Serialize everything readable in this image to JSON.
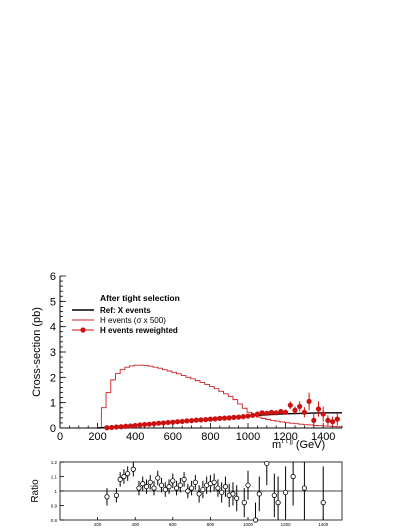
{
  "chart_data": [
    {
      "type": "line",
      "xlabel": "m",
      "xlabel_sup": "τ τ jj",
      "xlabel_unit": "(GeV)",
      "ylabel": "Cross-section (pb)",
      "xlim": [
        0,
        1500
      ],
      "ylim": [
        0,
        6
      ],
      "x_ticks": [
        0,
        200,
        400,
        600,
        800,
        1000,
        1200,
        1400
      ],
      "y_ticks": [
        0,
        1,
        2,
        3,
        4,
        5,
        6
      ],
      "legend_title": "After tight selection",
      "legend_position": "upper-left",
      "series": [
        {
          "name": "Ref: X events",
          "style": "line",
          "color": "#000000",
          "x": [
            200,
            300,
            400,
            500,
            600,
            700,
            800,
            900,
            1000,
            1100,
            1200,
            1300,
            1400,
            1500
          ],
          "y": [
            0.0,
            0.05,
            0.12,
            0.18,
            0.24,
            0.3,
            0.36,
            0.42,
            0.48,
            0.52,
            0.56,
            0.58,
            0.6,
            0.6
          ]
        },
        {
          "name": "H events (σ x 500)",
          "style": "step",
          "color": "#cc2222",
          "bin_edges": [
            220,
            245,
            270,
            295,
            320,
            345,
            370,
            395,
            420,
            445,
            470,
            495,
            520,
            545,
            570,
            595,
            620,
            645,
            670,
            695,
            720,
            745,
            770,
            795,
            820,
            845,
            870,
            895,
            920,
            945,
            970,
            995,
            1020,
            1045,
            1070,
            1095,
            1120,
            1145,
            1170,
            1195,
            1220,
            1245,
            1270,
            1295,
            1320,
            1345,
            1370,
            1395,
            1420,
            1445,
            1470,
            1500
          ],
          "values": [
            0.8,
            1.4,
            1.9,
            2.15,
            2.3,
            2.4,
            2.45,
            2.48,
            2.48,
            2.47,
            2.44,
            2.4,
            2.36,
            2.3,
            2.25,
            2.2,
            2.14,
            2.07,
            2.0,
            1.94,
            1.87,
            1.8,
            1.72,
            1.64,
            1.55,
            1.45,
            1.35,
            1.25,
            1.12,
            0.95,
            0.78,
            0.62,
            0.5,
            0.43,
            0.38,
            0.34,
            0.3,
            0.27,
            0.24,
            0.21,
            0.19,
            0.17,
            0.15,
            0.13,
            0.12,
            0.1,
            0.09,
            0.08,
            0.07,
            0.06,
            0.05
          ]
        },
        {
          "name": "H events reweighted",
          "style": "markers",
          "color": "#cc1111",
          "x": [
            250,
            275,
            300,
            325,
            350,
            375,
            400,
            425,
            450,
            475,
            500,
            525,
            550,
            575,
            600,
            625,
            650,
            675,
            700,
            725,
            750,
            775,
            800,
            825,
            850,
            875,
            900,
            925,
            950,
            975,
            1000,
            1025,
            1050,
            1075,
            1100,
            1125,
            1150,
            1175,
            1200,
            1225,
            1250,
            1275,
            1300,
            1325,
            1350,
            1375,
            1400,
            1425,
            1450,
            1475
          ],
          "y": [
            0.01,
            0.02,
            0.04,
            0.05,
            0.07,
            0.08,
            0.1,
            0.12,
            0.14,
            0.15,
            0.17,
            0.19,
            0.2,
            0.22,
            0.23,
            0.25,
            0.26,
            0.28,
            0.29,
            0.31,
            0.32,
            0.33,
            0.35,
            0.36,
            0.38,
            0.39,
            0.4,
            0.42,
            0.43,
            0.45,
            0.47,
            0.5,
            0.55,
            0.6,
            0.58,
            0.62,
            0.6,
            0.65,
            0.62,
            0.9,
            0.7,
            0.85,
            0.62,
            1.05,
            0.3,
            0.75,
            0.55,
            0.3,
            0.25,
            0.35
          ],
          "err": [
            0.01,
            0.01,
            0.01,
            0.01,
            0.01,
            0.01,
            0.01,
            0.01,
            0.01,
            0.01,
            0.01,
            0.01,
            0.01,
            0.01,
            0.01,
            0.01,
            0.01,
            0.01,
            0.01,
            0.01,
            0.01,
            0.01,
            0.01,
            0.01,
            0.01,
            0.02,
            0.02,
            0.02,
            0.02,
            0.02,
            0.03,
            0.04,
            0.05,
            0.05,
            0.06,
            0.07,
            0.08,
            0.09,
            0.1,
            0.15,
            0.15,
            0.2,
            0.2,
            0.35,
            0.25,
            0.3,
            0.3,
            0.2,
            0.2,
            0.25
          ]
        }
      ]
    },
    {
      "type": "scatter",
      "ylabel": "Ratio",
      "xlim": [
        0,
        1500
      ],
      "ylim": [
        0.8,
        1.2
      ],
      "y_ticks": [
        0.8,
        0.9,
        1,
        1.1,
        1.2
      ],
      "y_tick_labels": [
        "0.8",
        "0.9",
        "1",
        "1.1",
        "1.2"
      ],
      "x_ticks": [
        200,
        400,
        600,
        800,
        1000,
        1200,
        1400
      ],
      "reference_line": 1.0,
      "points": {
        "x": [
          250,
          300,
          320,
          340,
          360,
          390,
          420,
          440,
          460,
          480,
          500,
          520,
          540,
          560,
          580,
          600,
          620,
          640,
          660,
          680,
          700,
          720,
          740,
          760,
          780,
          800,
          820,
          840,
          860,
          880,
          900,
          920,
          940,
          980,
          1000,
          1040,
          1060,
          1100,
          1140,
          1160,
          1200,
          1240,
          1300,
          1400
        ],
        "y": [
          0.96,
          0.97,
          1.08,
          1.1,
          1.12,
          1.15,
          1.02,
          1.05,
          1.03,
          1.06,
          1.02,
          1.09,
          1.04,
          1.01,
          1.03,
          1.07,
          1.02,
          1.04,
          1.08,
          1.0,
          1.02,
          1.06,
          0.98,
          1.01,
          1.04,
          1.05,
          1.06,
          1.02,
          0.99,
          1.03,
          0.97,
          0.98,
          0.95,
          0.92,
          1.04,
          0.8,
          0.98,
          1.19,
          0.97,
          0.92,
          0.99,
          1.1,
          1.02,
          0.92
        ],
        "err": [
          0.06,
          0.05,
          0.05,
          0.05,
          0.05,
          0.05,
          0.05,
          0.05,
          0.05,
          0.05,
          0.05,
          0.05,
          0.05,
          0.05,
          0.05,
          0.05,
          0.05,
          0.05,
          0.05,
          0.05,
          0.05,
          0.05,
          0.06,
          0.06,
          0.06,
          0.06,
          0.06,
          0.06,
          0.07,
          0.07,
          0.08,
          0.08,
          0.09,
          0.1,
          0.1,
          0.12,
          0.12,
          0.15,
          0.15,
          0.18,
          0.18,
          0.2,
          0.22,
          0.25
        ]
      }
    }
  ]
}
